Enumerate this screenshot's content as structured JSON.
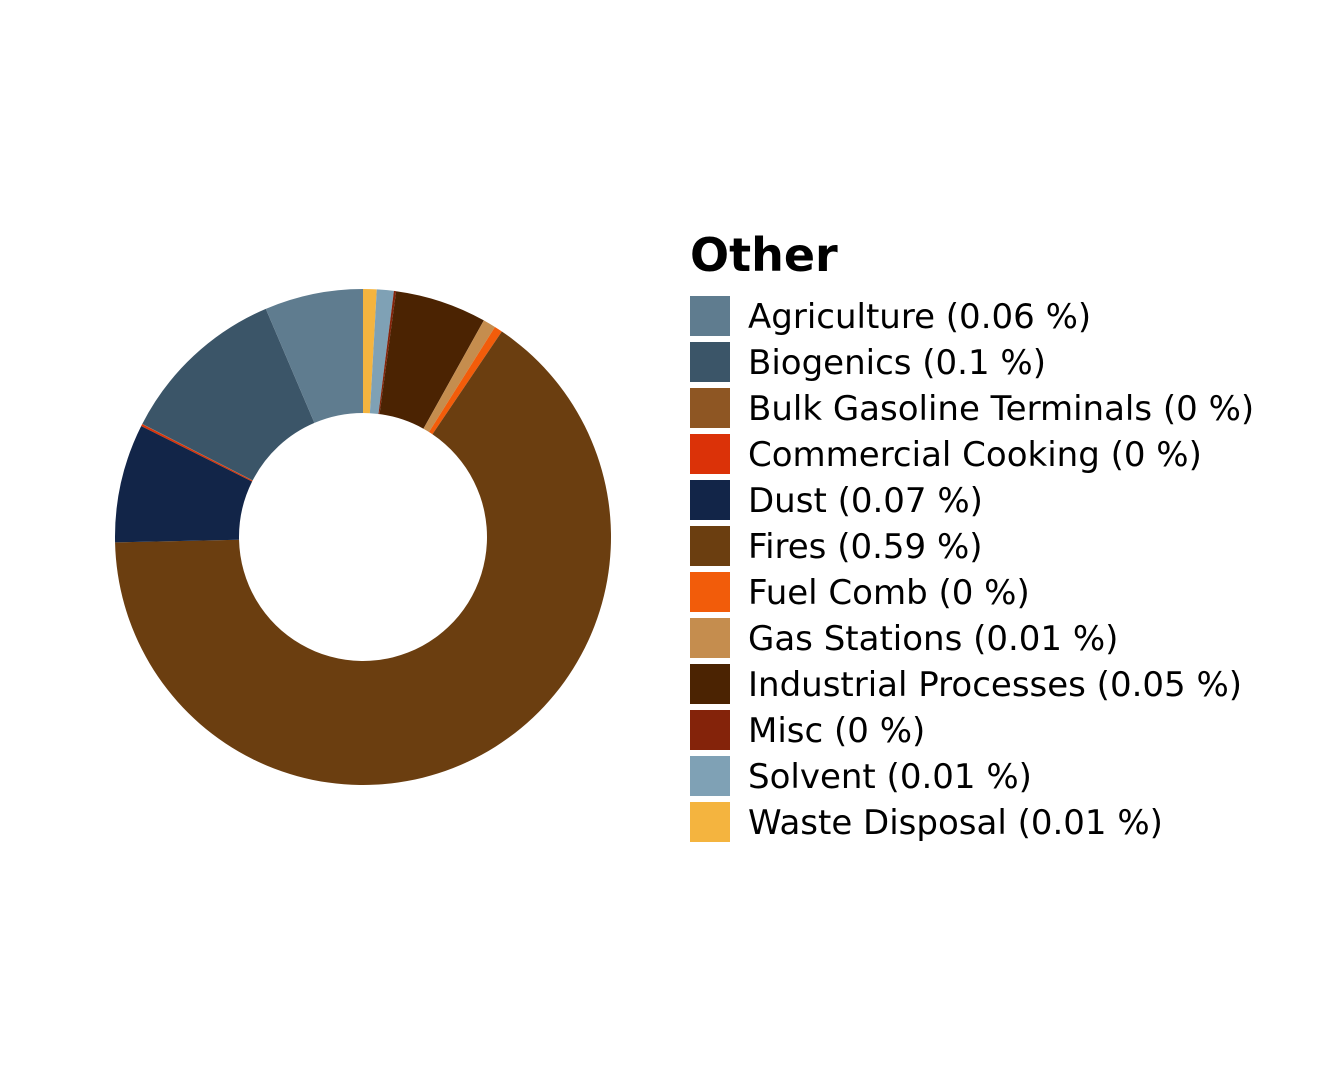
{
  "chart_data": {
    "type": "pie",
    "donut": true,
    "legend_title": "Other",
    "legend_position": "right",
    "start_angle_deg": 0,
    "direction": "clockwise",
    "slices": [
      {
        "label": "Waste Disposal (0.01 %)",
        "name": "Waste Disposal",
        "value": 0.008,
        "color": "#F4B43F"
      },
      {
        "label": "Solvent (0.01 %)",
        "name": "Solvent",
        "value": 0.01,
        "color": "#7FA1B5"
      },
      {
        "label": "Misc (0 %)",
        "name": "Misc",
        "value": 0.0013,
        "color": "#84230A"
      },
      {
        "label": "Industrial Processes (0.05 %)",
        "name": "Industrial Processes",
        "value": 0.054,
        "color": "#4B2302"
      },
      {
        "label": "Gas Stations (0.01 %)",
        "name": "Gas Stations",
        "value": 0.0075,
        "color": "#C58D4E"
      },
      {
        "label": "Fuel Comb (0 %)",
        "name": "Fuel Comb",
        "value": 0.0048,
        "color": "#F25C0A"
      },
      {
        "label": "Fires (0.59 %)",
        "name": "Fires",
        "value": 0.59,
        "color": "#6B3E10"
      },
      {
        "label": "Dust (0.07 %)",
        "name": "Dust",
        "value": 0.07,
        "color": "#122548"
      },
      {
        "label": "Commercial Cooking (0 %)",
        "name": "Commercial Cooking",
        "value": 0.0012,
        "color": "#DB3208"
      },
      {
        "label": "Bulk Gasoline Terminals (0 %)",
        "name": "Bulk Gasoline Terminals",
        "value": 0.0002,
        "color": "#8E5623"
      },
      {
        "label": "Biogenics (0.1 %)",
        "name": "Biogenics",
        "value": 0.1,
        "color": "#3B5568"
      },
      {
        "label": "Agriculture (0.06 %)",
        "name": "Agriculture",
        "value": 0.058,
        "color": "#5F7C8F"
      }
    ],
    "legend_order": [
      "Agriculture",
      "Biogenics",
      "Bulk Gasoline Terminals",
      "Commercial Cooking",
      "Dust",
      "Fires",
      "Fuel Comb",
      "Gas Stations",
      "Industrial Processes",
      "Misc",
      "Solvent",
      "Waste Disposal"
    ]
  }
}
